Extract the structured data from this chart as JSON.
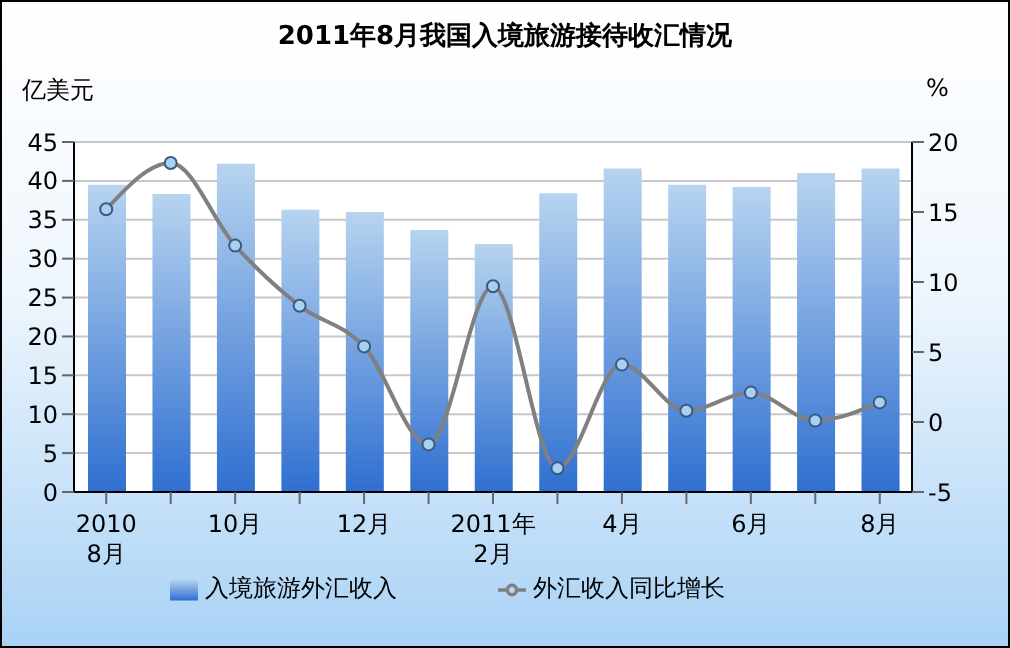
{
  "chart_data": {
    "type": "bar",
    "title": "2011年8月我国入境旅游接待收汇情况",
    "ylabel": "亿美元",
    "y2label": "%",
    "categories": [
      "2010\n8月",
      null,
      "10月",
      null,
      "12月",
      null,
      "2011年\n2月",
      null,
      "4月",
      null,
      "6月",
      null,
      "8月"
    ],
    "series": [
      {
        "name": "入境旅游外汇收入",
        "color": "#2f6fd0",
        "values": [
          39.5,
          38.3,
          42.2,
          36.3,
          36.0,
          33.7,
          31.9,
          38.4,
          41.6,
          39.5,
          39.2,
          41.0,
          41.6
        ]
      },
      {
        "name": "外汇收入同比增长",
        "type": "line",
        "axis": "y2",
        "color": "#808080",
        "values": [
          15.2,
          18.5,
          12.6,
          8.3,
          5.4,
          -1.6,
          9.7,
          -3.3,
          4.1,
          0.8,
          2.1,
          0.1,
          1.4
        ]
      }
    ],
    "ylim": [
      0,
      45
    ],
    "yticks": [
      0,
      5,
      10,
      15,
      20,
      25,
      30,
      35,
      40,
      45
    ],
    "y2lim": [
      -5,
      20
    ],
    "y2ticks": [
      -5,
      0,
      5,
      10,
      15,
      20
    ],
    "grid": "y",
    "legend": "bottom",
    "marker": "circle"
  }
}
